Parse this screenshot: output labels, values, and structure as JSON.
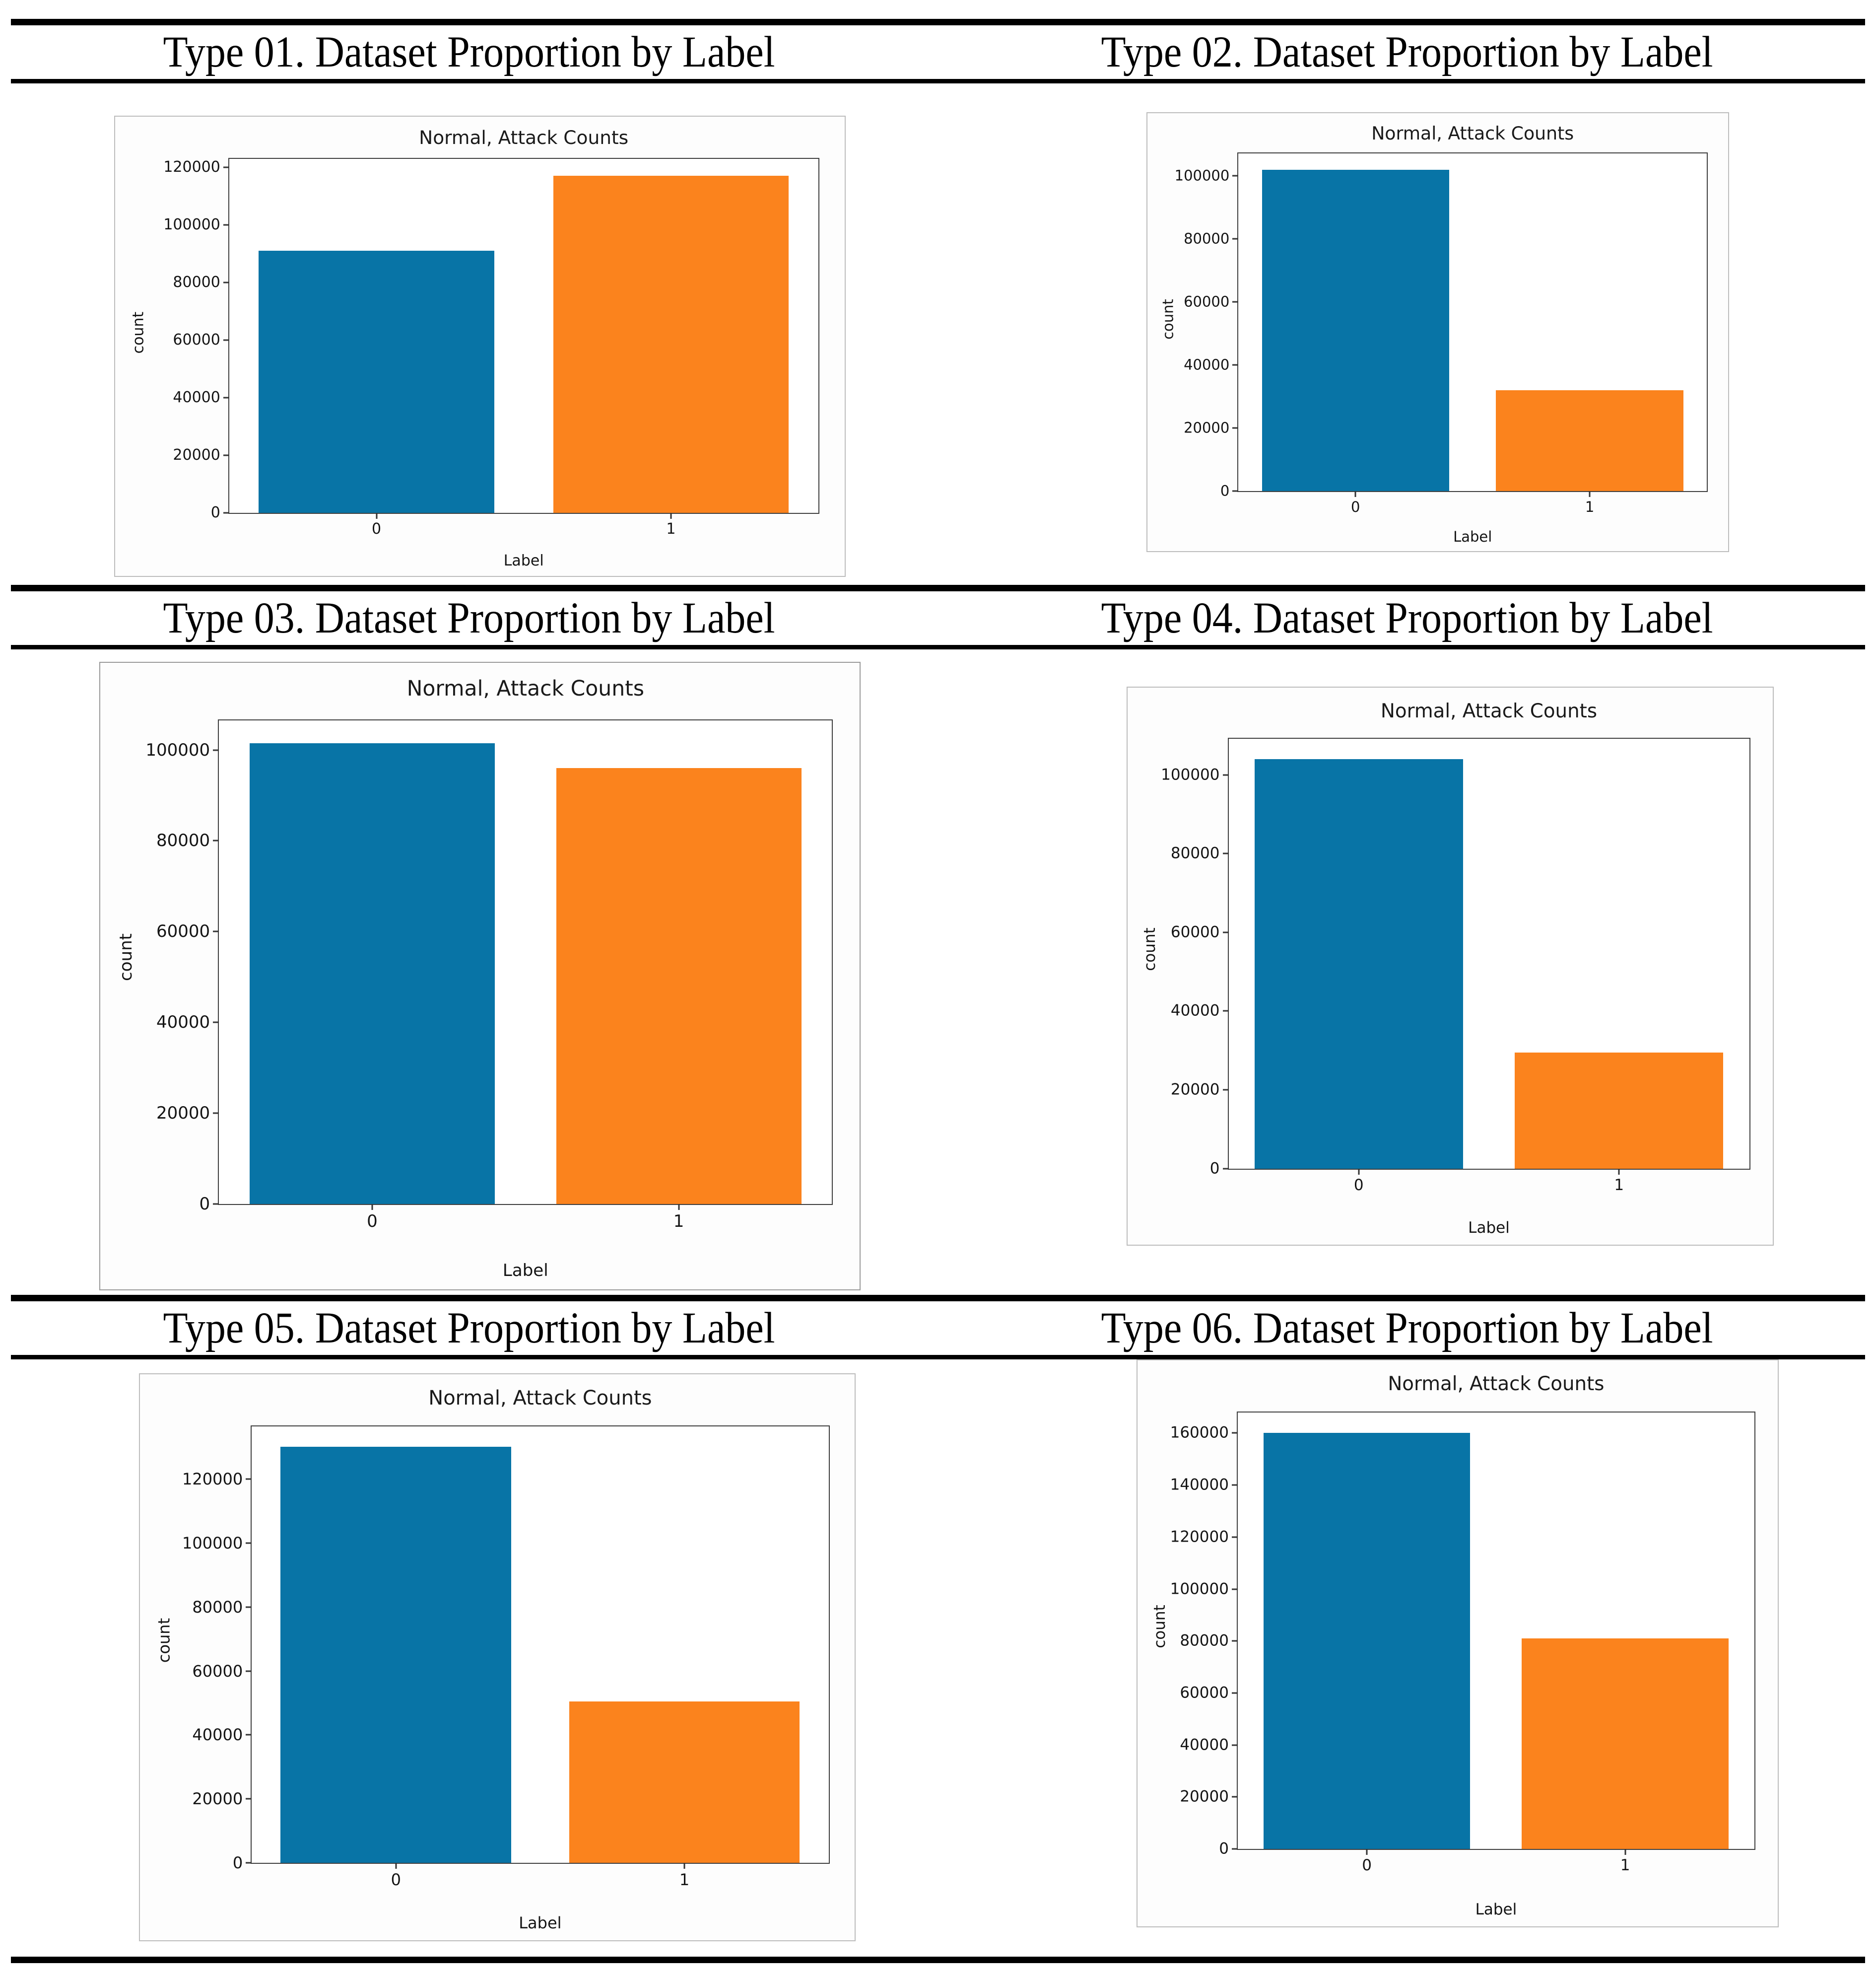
{
  "page": {
    "background": "#ffffff",
    "rule_color": "#000000"
  },
  "sections": [
    {
      "title": "Type 01. Dataset Proportion by Label"
    },
    {
      "title": "Type 02. Dataset Proportion by Label"
    },
    {
      "title": "Type 03. Dataset Proportion by Label"
    },
    {
      "title": "Type 04. Dataset Proportion by Label"
    },
    {
      "title": "Type 05. Dataset Proportion by Label"
    },
    {
      "title": "Type 06. Dataset Proportion by Label"
    }
  ],
  "chart_data": [
    {
      "type": "bar",
      "section_title": "Type 01. Dataset Proportion by Label",
      "title": "Normal, Attack Counts",
      "xlabel": "Label",
      "ylabel": "count",
      "categories": [
        "0",
        "1"
      ],
      "values": [
        91000,
        117000
      ],
      "bar_colors": [
        "#0874A6",
        "#FB831D"
      ],
      "yticks": [
        0,
        20000,
        40000,
        60000,
        80000,
        100000,
        120000
      ],
      "ylim": [
        0,
        122850
      ],
      "grid": false,
      "legend": "none"
    },
    {
      "type": "bar",
      "section_title": "Type 02. Dataset Proportion by Label",
      "title": "Normal, Attack Counts",
      "xlabel": "Label",
      "ylabel": "count",
      "categories": [
        "0",
        "1"
      ],
      "values": [
        102000,
        32000
      ],
      "bar_colors": [
        "#0874A6",
        "#FB831D"
      ],
      "yticks": [
        0,
        20000,
        40000,
        60000,
        80000,
        100000
      ],
      "ylim": [
        0,
        107100
      ],
      "grid": false,
      "legend": "none"
    },
    {
      "type": "bar",
      "section_title": "Type 03. Dataset Proportion by Label",
      "title": "Normal, Attack Counts",
      "xlabel": "Label",
      "ylabel": "count",
      "categories": [
        "0",
        "1"
      ],
      "values": [
        101500,
        96000
      ],
      "bar_colors": [
        "#0874A6",
        "#FB831D"
      ],
      "yticks": [
        0,
        20000,
        40000,
        60000,
        80000,
        100000
      ],
      "ylim": [
        0,
        106575
      ],
      "grid": false,
      "legend": "none"
    },
    {
      "type": "bar",
      "section_title": "Type 04. Dataset Proportion by Label",
      "title": "Normal, Attack Counts",
      "xlabel": "Label",
      "ylabel": "count",
      "categories": [
        "0",
        "1"
      ],
      "values": [
        104000,
        29500
      ],
      "bar_colors": [
        "#0874A6",
        "#FB831D"
      ],
      "yticks": [
        0,
        20000,
        40000,
        60000,
        80000,
        100000
      ],
      "ylim": [
        0,
        109200
      ],
      "grid": false,
      "legend": "none"
    },
    {
      "type": "bar",
      "section_title": "Type 05. Dataset Proportion by Label",
      "title": "Normal, Attack Counts",
      "xlabel": "Label",
      "ylabel": "count",
      "categories": [
        "0",
        "1"
      ],
      "values": [
        130000,
        50500
      ],
      "bar_colors": [
        "#0874A6",
        "#FB831D"
      ],
      "yticks": [
        0,
        20000,
        40000,
        60000,
        80000,
        100000,
        120000
      ],
      "ylim": [
        0,
        136500
      ],
      "grid": false,
      "legend": "none"
    },
    {
      "type": "bar",
      "section_title": "Type 06. Dataset Proportion by Label",
      "title": "Normal, Attack Counts",
      "xlabel": "Label",
      "ylabel": "count",
      "categories": [
        "0",
        "1"
      ],
      "values": [
        160000,
        81000
      ],
      "bar_colors": [
        "#0874A6",
        "#FB831D"
      ],
      "yticks": [
        0,
        20000,
        40000,
        60000,
        80000,
        100000,
        120000,
        140000,
        160000
      ],
      "ylim": [
        0,
        168000
      ],
      "grid": false,
      "legend": "none"
    }
  ]
}
